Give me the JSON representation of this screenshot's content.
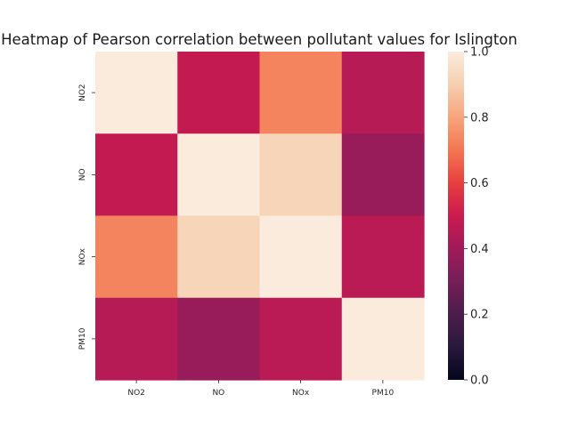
{
  "chart_data": {
    "type": "heatmap",
    "title": "Heatmap of Pearson correlation between pollutant values for Islington",
    "x_categories": [
      "NO2",
      "NO",
      "NOx",
      "PM10"
    ],
    "y_categories": [
      "NO2",
      "NO",
      "NOx",
      "PM10"
    ],
    "values": [
      [
        1.0,
        0.48,
        0.73,
        0.45
      ],
      [
        0.48,
        1.0,
        0.92,
        0.38
      ],
      [
        0.73,
        0.92,
        1.0,
        0.46
      ],
      [
        0.45,
        0.38,
        0.46,
        1.0
      ]
    ],
    "colorbar": {
      "range": [
        0.0,
        1.0
      ],
      "ticks": [
        "0.0",
        "0.2",
        "0.4",
        "0.6",
        "0.8",
        "1.0"
      ],
      "colormap": "rocket"
    },
    "xlabel": "",
    "ylabel": ""
  }
}
